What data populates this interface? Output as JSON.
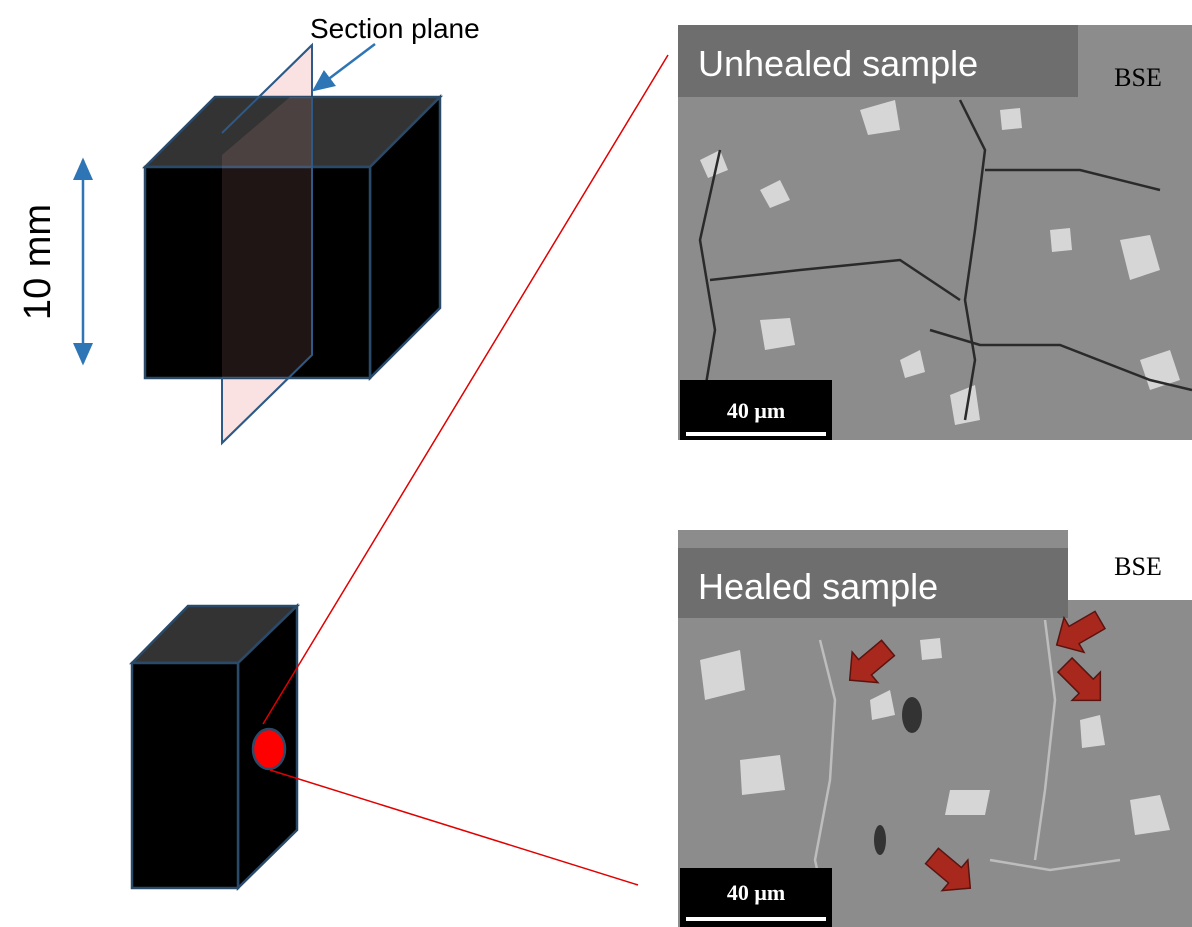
{
  "labels": {
    "section_plane": "Section plane",
    "dimension": "10 mm"
  },
  "panels": [
    {
      "title": "Unhealed sample",
      "detector": "BSE",
      "scale_bar": "40 μm"
    },
    {
      "title": "Healed sample",
      "detector": "BSE",
      "scale_bar": "40 μm"
    }
  ]
}
